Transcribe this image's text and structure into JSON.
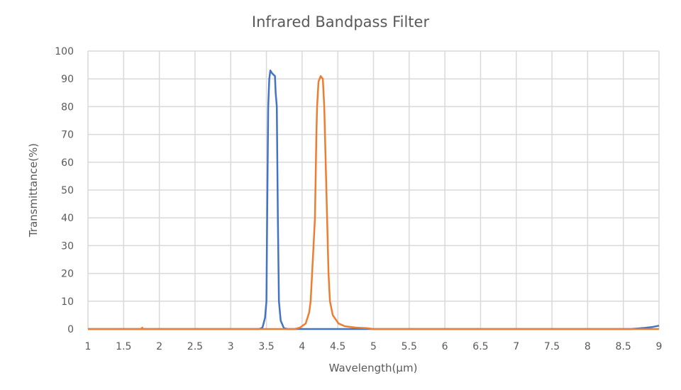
{
  "chart_data": {
    "type": "line",
    "title": "Infrared Bandpass Filter",
    "xlabel": "Wavelength(μm)",
    "ylabel": "Transmittance(%)",
    "xlim": [
      1,
      9
    ],
    "ylim": [
      0,
      100
    ],
    "xticks": [
      "1",
      "1.5",
      "2",
      "2.5",
      "3",
      "3.5",
      "4",
      "4.5",
      "5",
      "5.5",
      "6",
      "6.5",
      "7",
      "7.5",
      "8",
      "8.5",
      "9"
    ],
    "yticks": [
      "0",
      "10",
      "20",
      "30",
      "40",
      "50",
      "60",
      "70",
      "80",
      "90",
      "100"
    ],
    "grid": true,
    "series": [
      {
        "color": "#4472C4",
        "points": [
          [
            1,
            0
          ],
          [
            3.4,
            0
          ],
          [
            3.445,
            0.5
          ],
          [
            3.48,
            4
          ],
          [
            3.5,
            10
          ],
          [
            3.51,
            40
          ],
          [
            3.525,
            80
          ],
          [
            3.54,
            90
          ],
          [
            3.555,
            93
          ],
          [
            3.58,
            92
          ],
          [
            3.62,
            91
          ],
          [
            3.63,
            85
          ],
          [
            3.645,
            80
          ],
          [
            3.66,
            40
          ],
          [
            3.675,
            10
          ],
          [
            3.7,
            3
          ],
          [
            3.745,
            0.3
          ],
          [
            3.8,
            0
          ],
          [
            8.6,
            0
          ],
          [
            8.7,
            0.2
          ],
          [
            8.8,
            0.4
          ],
          [
            8.9,
            0.7
          ],
          [
            9,
            1.2
          ]
        ]
      },
      {
        "color": "#ED7D31",
        "points": [
          [
            1,
            0
          ],
          [
            1.75,
            0
          ],
          [
            1.76,
            0.5
          ],
          [
            1.77,
            0
          ],
          [
            3.9,
            0
          ],
          [
            3.97,
            0.5
          ],
          [
            4.05,
            2
          ],
          [
            4.1,
            6
          ],
          [
            4.12,
            10
          ],
          [
            4.15,
            25
          ],
          [
            4.18,
            40
          ],
          [
            4.2,
            70
          ],
          [
            4.21,
            80
          ],
          [
            4.23,
            89
          ],
          [
            4.26,
            91
          ],
          [
            4.29,
            90
          ],
          [
            4.31,
            80
          ],
          [
            4.33,
            60
          ],
          [
            4.35,
            40
          ],
          [
            4.37,
            20
          ],
          [
            4.39,
            10
          ],
          [
            4.43,
            5
          ],
          [
            4.51,
            2
          ],
          [
            4.6,
            1
          ],
          [
            4.75,
            0.5
          ],
          [
            4.9,
            0.3
          ],
          [
            5,
            0
          ],
          [
            9,
            0
          ]
        ]
      }
    ]
  }
}
